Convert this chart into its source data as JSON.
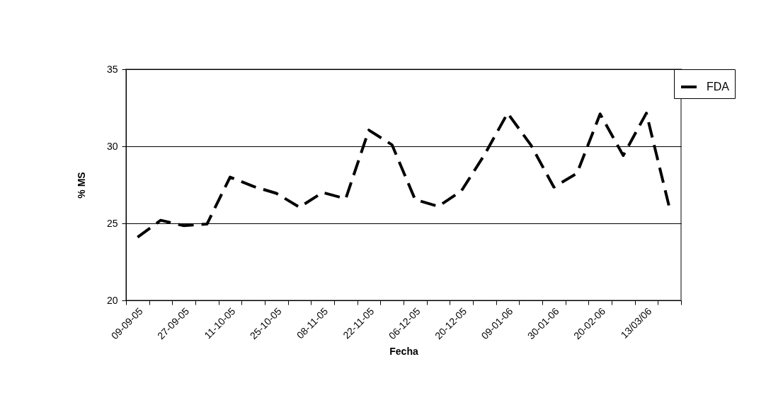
{
  "chart_data": {
    "type": "line",
    "xlabel": "Fecha",
    "ylabel": "% MS",
    "categories": [
      "09-09-05",
      null,
      "27-09-05",
      null,
      "11-10-05",
      null,
      "25-10-05",
      null,
      "08-11-05",
      null,
      "22-11-05",
      null,
      "06-12-05",
      null,
      "20-12-05",
      null,
      "09-01-06",
      null,
      "30-01-06",
      null,
      "20-02-06",
      null,
      "13/03/06",
      null
    ],
    "series": [
      {
        "name": "FDA",
        "color": "#000000",
        "values": [
          24.1,
          25.2,
          24.85,
          24.95,
          28.0,
          27.4,
          26.95,
          26.05,
          27.0,
          26.6,
          31.05,
          30.1,
          26.55,
          26.1,
          27.1,
          29.45,
          32.15,
          30.1,
          27.35,
          28.25,
          32.1,
          29.4,
          32.15,
          26.0
        ]
      }
    ],
    "ylim": [
      20,
      35
    ],
    "yticks": [
      20,
      25,
      30,
      35
    ],
    "grid": "y",
    "legend": "right",
    "line_style": "dashed"
  }
}
